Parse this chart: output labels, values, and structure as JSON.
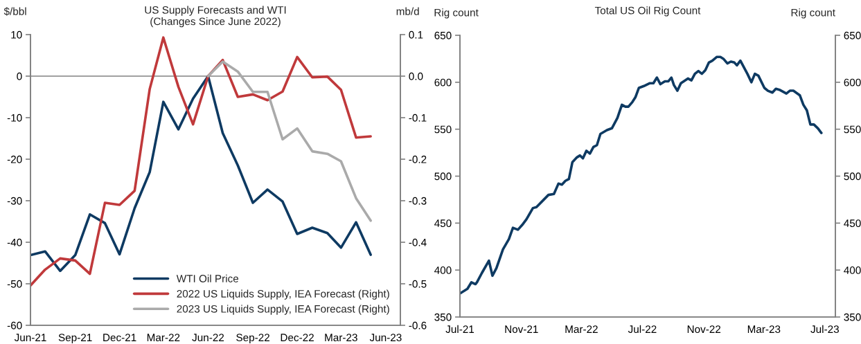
{
  "chart_data": [
    {
      "type": "line",
      "title": "US Supply Forecasts and WTI\n(Changes Since June 2022)",
      "ylabel": "$/bbl",
      "y2label": "mb/d",
      "x": [
        "2021-06",
        "2021-07",
        "2021-08",
        "2021-09",
        "2021-10",
        "2021-11",
        "2021-12",
        "2022-01",
        "2022-02",
        "2022-03",
        "2022-04",
        "2022-05",
        "2022-06",
        "2022-07",
        "2022-08",
        "2022-09",
        "2022-10",
        "2022-11",
        "2022-12",
        "2023-01",
        "2023-02",
        "2023-03",
        "2023-04",
        "2023-05"
      ],
      "series": [
        {
          "name": "WTI Oil Price",
          "color": "#0e3a62",
          "values": [
            -43.1,
            -42.2,
            -46.9,
            -43.1,
            -33.3,
            -35.4,
            -42.9,
            -31.8,
            -23.1,
            -6.2,
            -12.8,
            -5.4,
            0,
            -13.7,
            -21.5,
            -30.5,
            -27.3,
            -30.2,
            -38,
            -36.5,
            -37.8,
            -41.3,
            -35.2,
            -43
          ]
        },
        {
          "name": "2022 US Liquids Supply, IEA Forecast (Right)",
          "color": "#c0393b",
          "axis": "y2",
          "values": [
            -0.504,
            -0.466,
            -0.439,
            -0.444,
            -0.476,
            -0.305,
            -0.31,
            -0.276,
            -0.031,
            0.093,
            -0.026,
            -0.116,
            0,
            0.039,
            -0.05,
            -0.044,
            -0.058,
            -0.037,
            0.046,
            -0.003,
            -0.001,
            -0.033,
            -0.148,
            -0.145
          ]
        },
        {
          "name": "2023 US Liquids Supply, IEA Forecast (Right)",
          "color": "#aaaaaa",
          "axis": "y2",
          "x": [
            "2022-06",
            "2022-07",
            "2022-08",
            "2022-09",
            "2022-10",
            "2022-11",
            "2022-12",
            "2023-01",
            "2023-02",
            "2023-03",
            "2023-04",
            "2023-05"
          ],
          "values": [
            0,
            0.035,
            0.011,
            -0.038,
            -0.038,
            -0.152,
            -0.126,
            -0.181,
            -0.187,
            -0.205,
            -0.294,
            -0.348
          ]
        }
      ],
      "xlim": [
        "2021-06",
        "2023-07"
      ],
      "xticks": [
        {
          "value": "2021-06",
          "label": "Jun-21"
        },
        {
          "value": "2021-09",
          "label": "Sep-21"
        },
        {
          "value": "2021-12",
          "label": "Dec-21"
        },
        {
          "value": "2022-03",
          "label": "Mar-22"
        },
        {
          "value": "2022-06",
          "label": "Jun-22"
        },
        {
          "value": "2022-09",
          "label": "Sep-22"
        },
        {
          "value": "2022-12",
          "label": "Dec-22"
        },
        {
          "value": "2023-03",
          "label": "Mar-23"
        },
        {
          "value": "2023-06",
          "label": "Jun-23"
        }
      ],
      "ylim": [
        -60,
        10
      ],
      "yticks": [
        -60,
        -50,
        -40,
        -30,
        -20,
        -10,
        0,
        10
      ],
      "y2lim": [
        -0.6,
        0.1
      ],
      "y2ticks": [
        {
          "value": -0.6,
          "label": "-0.6"
        },
        {
          "value": -0.5,
          "label": "-0.5"
        },
        {
          "value": -0.4,
          "label": "-0.4"
        },
        {
          "value": -0.3,
          "label": "-0.3"
        },
        {
          "value": -0.2,
          "label": "-0.2"
        },
        {
          "value": -0.1,
          "label": "-0.1"
        },
        {
          "value": 0,
          "label": "0.0"
        },
        {
          "value": 0.1,
          "label": "0.1"
        }
      ],
      "ref_lines": [
        {
          "axis": "y",
          "value": 0,
          "color": "#808080"
        }
      ],
      "legend": "bottom right"
    },
    {
      "type": "line",
      "title": "Total US Oil Rig Count",
      "ylabel": "Rig count",
      "y2label": "Rig count",
      "x": [
        "2021-07-01",
        "2021-07-16",
        "2021-07-24",
        "2021-08-01",
        "2021-08-04",
        "2021-08-14",
        "2021-08-28",
        "2021-09-04",
        "2021-09-12",
        "2021-09-25",
        "2021-10-07",
        "2021-10-15",
        "2021-10-25",
        "2021-11-04",
        "2021-11-11",
        "2021-11-24",
        "2021-12-01",
        "2021-12-25",
        "2022-01-05",
        "2022-01-14",
        "2022-01-21",
        "2022-01-28",
        "2022-02-04",
        "2022-02-11",
        "2022-02-20",
        "2022-02-26",
        "2022-03-04",
        "2022-03-11",
        "2022-03-18",
        "2022-03-25",
        "2022-04-01",
        "2022-04-08",
        "2022-04-21",
        "2022-05-01",
        "2022-05-12",
        "2022-05-21",
        "2022-05-28",
        "2022-06-03",
        "2022-06-11",
        "2022-06-17",
        "2022-06-24",
        "2022-07-04",
        "2022-07-16",
        "2022-07-23",
        "2022-07-30",
        "2022-08-06",
        "2022-08-15",
        "2022-08-22",
        "2022-08-28",
        "2022-09-02",
        "2022-09-09",
        "2022-09-16",
        "2022-09-30",
        "2022-10-07",
        "2022-10-14",
        "2022-10-21",
        "2022-10-28",
        "2022-11-04",
        "2022-11-11",
        "2022-11-18",
        "2022-11-27",
        "2022-12-04",
        "2022-12-10",
        "2022-12-18",
        "2022-12-25",
        "2023-01-01",
        "2023-01-06",
        "2023-01-13",
        "2023-01-22",
        "2023-01-27",
        "2023-02-04",
        "2023-02-11",
        "2023-02-18",
        "2023-03-02",
        "2023-03-09",
        "2023-03-18",
        "2023-03-25",
        "2023-04-01",
        "2023-04-15",
        "2023-04-22",
        "2023-04-29",
        "2023-05-12",
        "2023-05-19",
        "2023-05-26",
        "2023-06-02",
        "2023-06-09",
        "2023-06-17",
        "2023-06-24"
      ],
      "series": [
        {
          "color": "#0e3a62",
          "values": [
            375,
            380,
            387,
            385,
            387,
            397,
            410,
            394,
            402,
            422,
            433,
            445,
            443,
            449,
            454,
            466,
            467,
            480,
            481,
            492,
            491,
            495,
            497,
            515,
            520,
            522,
            519,
            527,
            524,
            531,
            533,
            545,
            549,
            551,
            562,
            576,
            574,
            574,
            579,
            584,
            594,
            596,
            599,
            599,
            605,
            598,
            601,
            601,
            605,
            597,
            591,
            599,
            604,
            602,
            609,
            612,
            609,
            613,
            621,
            623,
            627,
            627,
            625,
            620,
            622,
            621,
            618,
            623,
            614,
            609,
            600,
            609,
            607,
            594,
            591,
            589,
            593,
            592,
            588,
            591,
            591,
            586,
            576,
            570,
            555,
            555,
            551,
            546
          ]
        }
      ],
      "xlim": [
        "2021-07-01",
        "2023-07-22"
      ],
      "xticks": [
        {
          "value": "2021-07-01",
          "label": "Jul-21"
        },
        {
          "value": "2021-11-01",
          "label": "Nov-21"
        },
        {
          "value": "2022-03-01",
          "label": "Mar-22"
        },
        {
          "value": "2022-07-01",
          "label": "Jul-22"
        },
        {
          "value": "2022-11-01",
          "label": "Nov-22"
        },
        {
          "value": "2023-03-01",
          "label": "Mar-23"
        },
        {
          "value": "2023-07-01",
          "label": "Jul-23"
        }
      ],
      "ylim": [
        350,
        650
      ],
      "yticks": [
        350,
        400,
        450,
        500,
        550,
        600,
        650
      ],
      "y2lim": [
        350,
        650
      ],
      "y2ticks": [
        350,
        400,
        450,
        500,
        550,
        600,
        650
      ]
    }
  ]
}
